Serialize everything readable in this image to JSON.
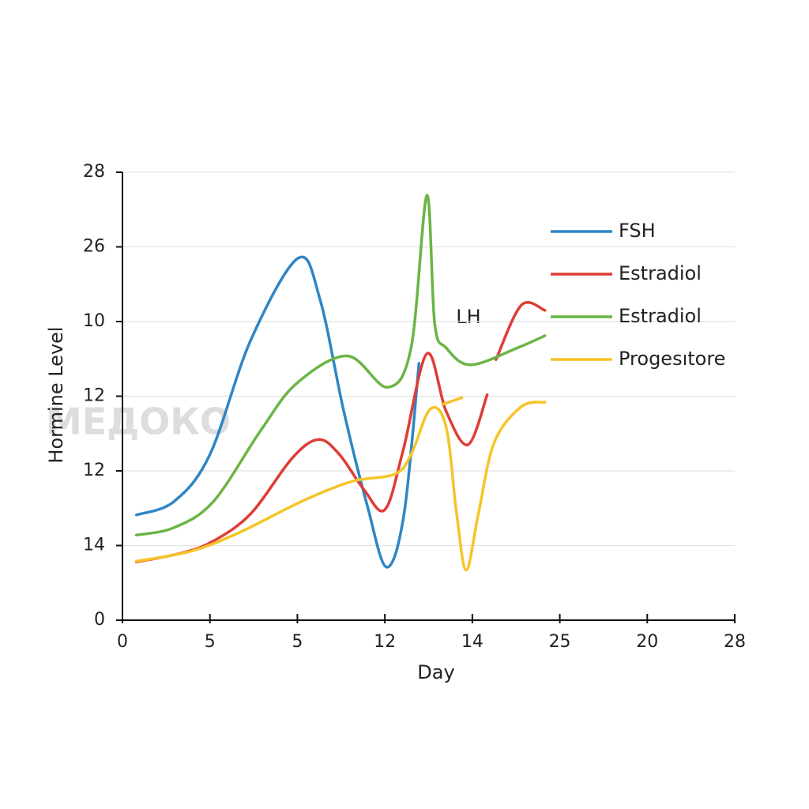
{
  "chart_data": {
    "type": "line",
    "xlabel": "Day",
    "ylabel": "Hormine Level",
    "annotation": "LH",
    "watermark": "МЕДОКО",
    "xlim": [
      0,
      7
    ],
    "xticks": [
      0,
      {
        "value": 1,
        "label": "5"
      },
      {
        "value": 2,
        "label": "5"
      },
      {
        "value": 3,
        "label": "12"
      },
      {
        "value": 4,
        "label": "14"
      },
      {
        "value": 5,
        "label": "25"
      },
      {
        "value": 6,
        "label": "20"
      },
      {
        "value": 7,
        "label": "28"
      }
    ],
    "ylim": [
      0,
      6
    ],
    "yticks": [
      0,
      {
        "value": 1,
        "label": "14"
      },
      {
        "value": 2,
        "label": "12"
      },
      {
        "value": 3,
        "label": "12"
      },
      {
        "value": 4,
        "label": "10"
      },
      {
        "value": 5,
        "label": "26"
      },
      {
        "value": 6,
        "label": "28"
      }
    ],
    "grid": true,
    "legend": "upper right",
    "series": [
      {
        "name": "FSH",
        "color": "#2f86c4",
        "x": [
          0.16,
          0.59,
          1.0,
          1.47,
          2.01,
          2.26,
          2.53,
          2.8,
          3.02,
          3.22,
          3.39
        ],
        "values": [
          1.41,
          1.59,
          2.22,
          3.76,
          4.85,
          4.29,
          2.8,
          1.53,
          0.71,
          1.43,
          3.44
        ]
      },
      {
        "name": "Estradiol",
        "color": "#e03c36",
        "x": [
          0.16,
          0.68,
          1.04,
          1.47,
          1.94,
          2.24,
          2.48,
          2.76,
          3.0,
          3.21,
          3.48,
          3.7,
          3.95,
          4.17,
          null,
          4.27,
          4.56,
          4.83
        ],
        "values": [
          0.78,
          0.9,
          1.06,
          1.43,
          2.17,
          2.42,
          2.22,
          1.75,
          1.48,
          2.28,
          3.57,
          2.8,
          2.35,
          3.02,
          null,
          3.49,
          4.22,
          4.15
        ]
      },
      {
        "name": "Estradiol",
        "color": "#6ab545",
        "x": [
          0.16,
          0.59,
          1.04,
          1.58,
          1.99,
          2.57,
          3.03,
          3.3,
          3.48,
          3.57,
          3.7,
          3.98,
          4.52,
          4.83
        ],
        "values": [
          1.14,
          1.24,
          1.59,
          2.54,
          3.17,
          3.54,
          3.12,
          3.65,
          5.69,
          3.97,
          3.65,
          3.42,
          3.65,
          3.81
        ]
      },
      {
        "name": "Progesıtore",
        "color": "#f6c428",
        "x": [
          0.16,
          0.77,
          1.31,
          1.94,
          2.3,
          2.66,
          3.12,
          3.3,
          3.52,
          3.7,
          3.82,
          3.93,
          4.07,
          4.25,
          4.56,
          4.83,
          null,
          3.66,
          3.88
        ],
        "values": [
          0.79,
          0.92,
          1.16,
          1.53,
          1.72,
          1.87,
          1.96,
          2.22,
          2.83,
          2.59,
          1.43,
          0.67,
          1.43,
          2.38,
          2.86,
          2.92,
          null,
          2.89,
          2.98
        ]
      }
    ]
  }
}
